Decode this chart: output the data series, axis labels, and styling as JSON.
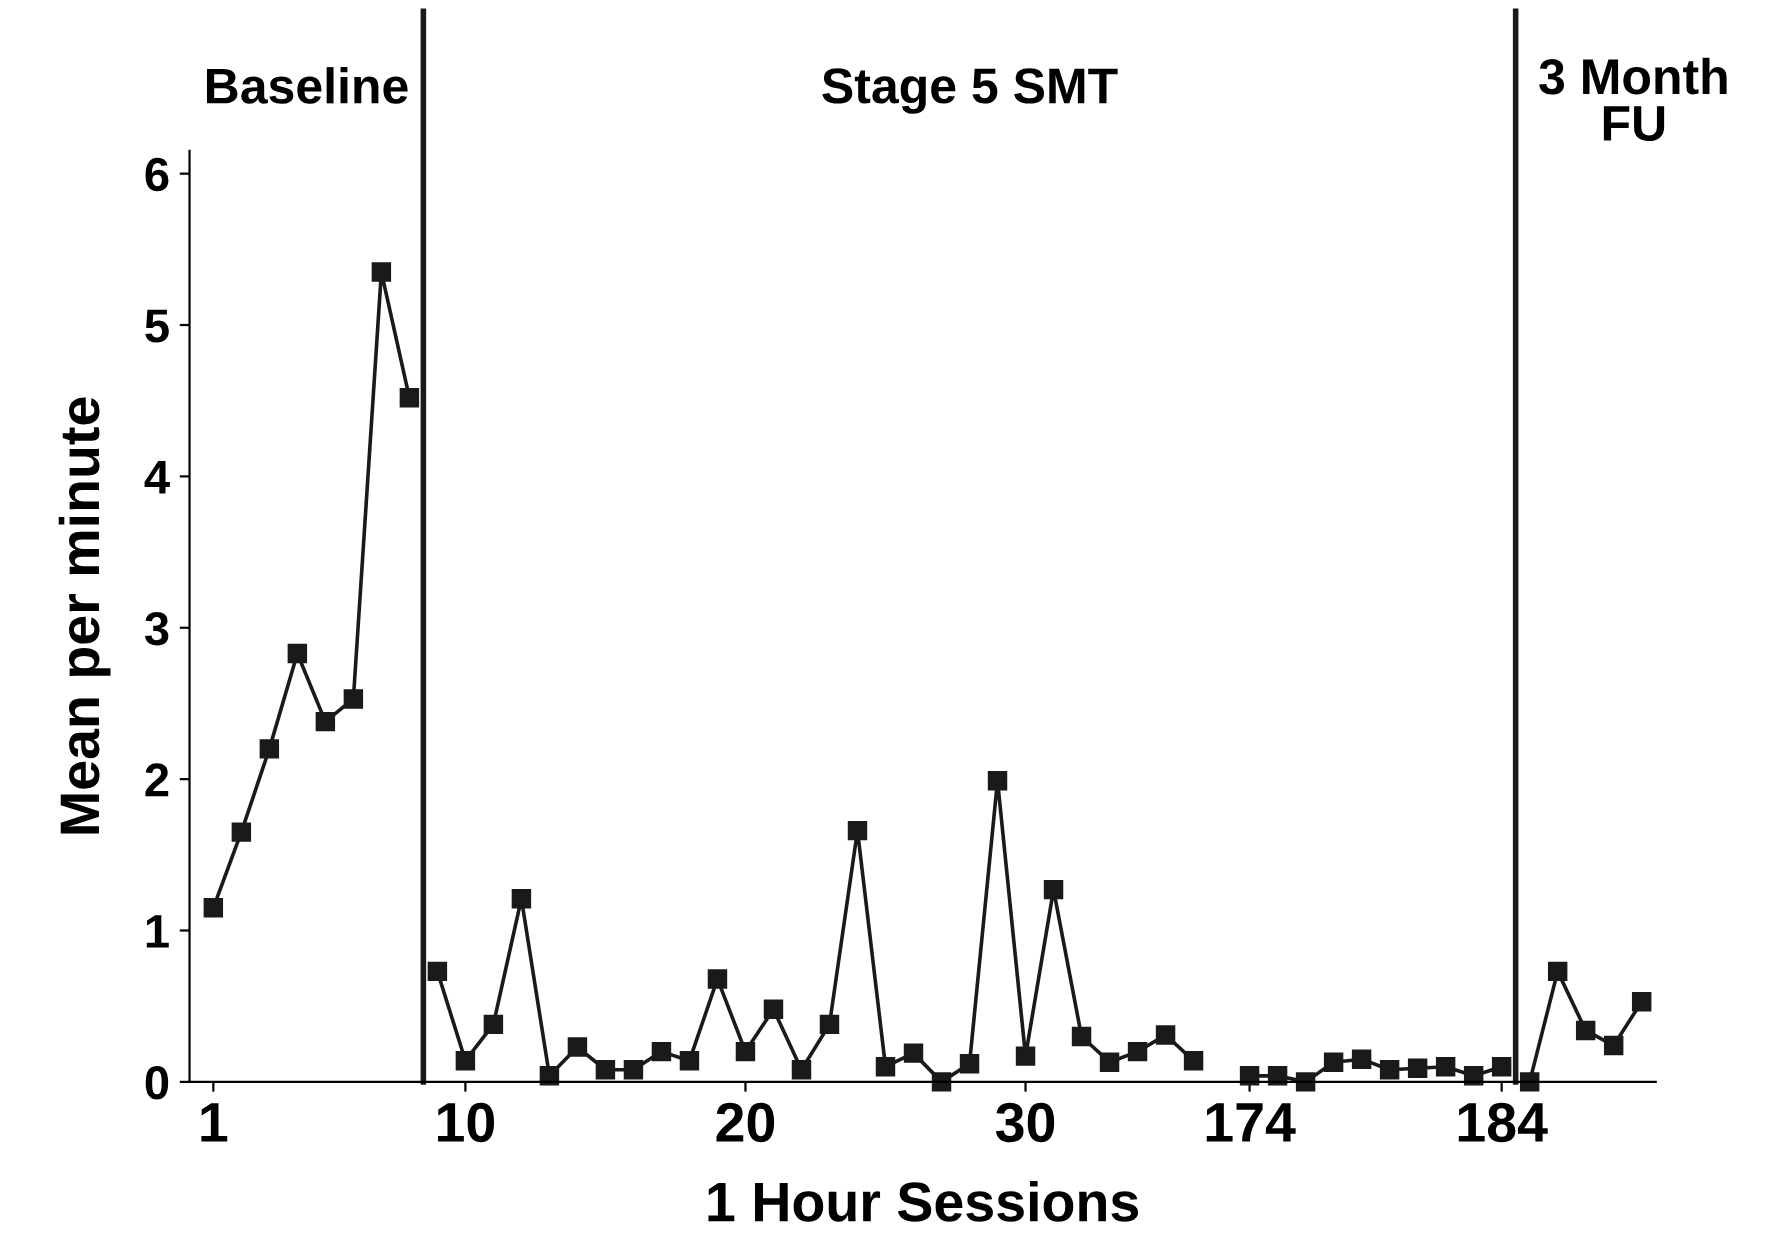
{
  "chart_data": {
    "type": "line",
    "xlabel": "1 Hour Sessions",
    "ylabel": "Mean per minute",
    "categories": [
      "1",
      null,
      null,
      null,
      null,
      null,
      null,
      null,
      null,
      "10",
      null,
      null,
      null,
      null,
      null,
      null,
      null,
      null,
      null,
      "20",
      null,
      null,
      null,
      null,
      null,
      null,
      null,
      null,
      null,
      "30",
      null,
      null,
      null,
      null,
      null,
      null,
      null,
      "174",
      null,
      null,
      null,
      null,
      null,
      null,
      null,
      null,
      "184",
      null,
      null,
      null,
      null,
      null
    ],
    "series": [
      {
        "color": "#1a1a1a",
        "values": [
          1.15,
          1.65,
          2.2,
          2.83,
          2.38,
          2.53,
          5.35,
          4.52,
          null,
          null,
          null,
          null,
          null,
          null,
          null,
          null,
          null,
          null,
          null,
          null,
          null,
          null,
          null,
          null,
          null,
          null,
          null,
          null,
          null,
          null,
          null,
          null,
          null,
          null,
          null,
          null,
          null,
          null,
          null,
          null,
          null,
          null,
          null,
          null,
          null,
          null,
          null,
          null,
          null,
          null,
          null,
          null
        ]
      },
      {
        "color": "#1a1a1a",
        "values": [
          null,
          null,
          null,
          null,
          null,
          null,
          null,
          null,
          0.73,
          0.14,
          0.38,
          1.21,
          0.04,
          0.23,
          0.08,
          0.08,
          0.2,
          0.14,
          0.68,
          0.2,
          0.48,
          0.08,
          0.38,
          1.66,
          0.1,
          0.19,
          0.0,
          0.12,
          1.99,
          0.17,
          1.27,
          0.3,
          0.13,
          0.2,
          0.31,
          0.14,
          null,
          0.04,
          0.04,
          0.0,
          0.13,
          0.15,
          0.08,
          0.09,
          0.1,
          0.04,
          0.1,
          null,
          null,
          null,
          null,
          null
        ]
      },
      {
        "color": "#1a1a1a",
        "values": [
          null,
          null,
          null,
          null,
          null,
          null,
          null,
          null,
          null,
          null,
          null,
          null,
          null,
          null,
          null,
          null,
          null,
          null,
          null,
          null,
          null,
          null,
          null,
          null,
          null,
          null,
          null,
          null,
          null,
          null,
          null,
          null,
          null,
          null,
          null,
          null,
          null,
          null,
          null,
          null,
          null,
          null,
          null,
          null,
          null,
          null,
          null,
          0.0,
          0.73,
          0.34,
          0.24,
          0.53
        ]
      }
    ],
    "ylim": [
      0,
      6.15
    ],
    "yticks": [
      0,
      1,
      2,
      3,
      4,
      5,
      6
    ],
    "marker": "square",
    "line_style": "solid",
    "grid": false,
    "legend": false,
    "annotations": [
      "Baseline",
      "Stage 5 SMT",
      "3 Month\nFU"
    ]
  }
}
